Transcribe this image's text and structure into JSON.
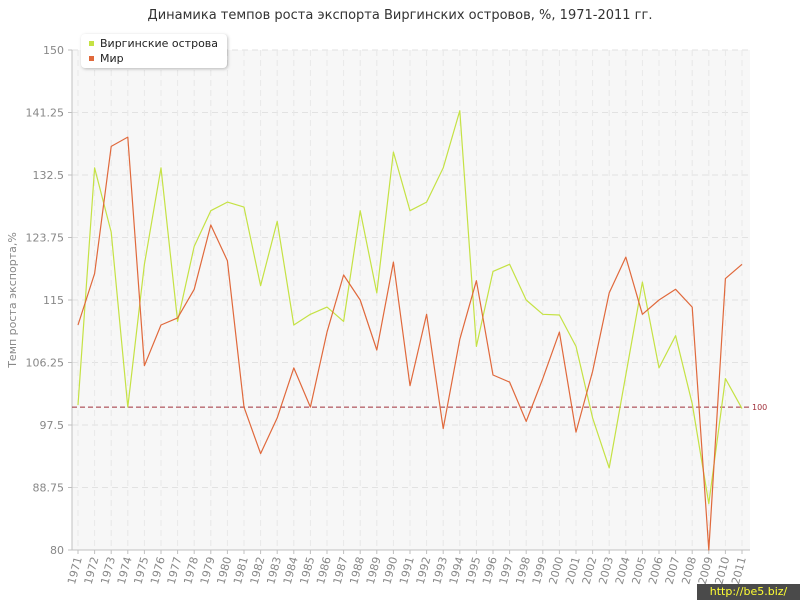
{
  "chart_data": {
    "type": "line",
    "title": "Динамика темпов роста экспорта Виргинских островов, %, 1971-2011 гг.",
    "xlabel": "",
    "ylabel": "Темп роста экспорта,%",
    "ylim": [
      80,
      150
    ],
    "yticks": [
      "80",
      "88.75",
      "97.5",
      "106.25",
      "115",
      "123.75",
      "132.5",
      "141.25",
      "150"
    ],
    "categories": [
      "1971",
      "1972",
      "1973",
      "1974",
      "1975",
      "1976",
      "1977",
      "1978",
      "1979",
      "1980",
      "1981",
      "1982",
      "1983",
      "1984",
      "1985",
      "1986",
      "1987",
      "1988",
      "1989",
      "1990",
      "1991",
      "1992",
      "1993",
      "1994",
      "1995",
      "1996",
      "1997",
      "1998",
      "1999",
      "2000",
      "2001",
      "2002",
      "2003",
      "2004",
      "2005",
      "2006",
      "2007",
      "2008",
      "2009",
      "2010",
      "2011"
    ],
    "series": [
      {
        "name": "Виргинские острова",
        "color": "#c5e244",
        "values": [
          100.3,
          133.5,
          124.5,
          100.0,
          120.0,
          133.5,
          112.0,
          122.5,
          127.5,
          128.7,
          128.0,
          117.0,
          126.0,
          111.5,
          113.0,
          114.0,
          112.0,
          127.5,
          116.0,
          135.7,
          127.5,
          128.7,
          133.5,
          141.5,
          108.5,
          119.0,
          120.0,
          115.0,
          113.0,
          112.9,
          108.5,
          98.5,
          91.5,
          104.5,
          117.5,
          105.5,
          110.0,
          100.5,
          86.5,
          104.0,
          99.8
        ]
      },
      {
        "name": "Мир",
        "color": "#e0693c",
        "values": [
          111.5,
          118.7,
          136.5,
          137.8,
          105.8,
          111.5,
          112.5,
          116.5,
          125.5,
          120.5,
          100.0,
          93.5,
          98.5,
          105.5,
          100.0,
          110.5,
          118.5,
          115.0,
          108.0,
          120.3,
          103.0,
          113.0,
          97.0,
          109.5,
          117.7,
          104.5,
          103.5,
          98.0,
          104.0,
          110.5,
          96.5,
          105.0,
          116.0,
          121.0,
          113.0,
          115.0,
          116.5,
          114.0,
          80.0,
          118.0,
          120.0
        ]
      }
    ],
    "reference_line": {
      "value": 100,
      "label": "100",
      "color": "#a0303a"
    },
    "grid": true,
    "legend_position": "top-left"
  },
  "watermark": "http://be5.biz/"
}
